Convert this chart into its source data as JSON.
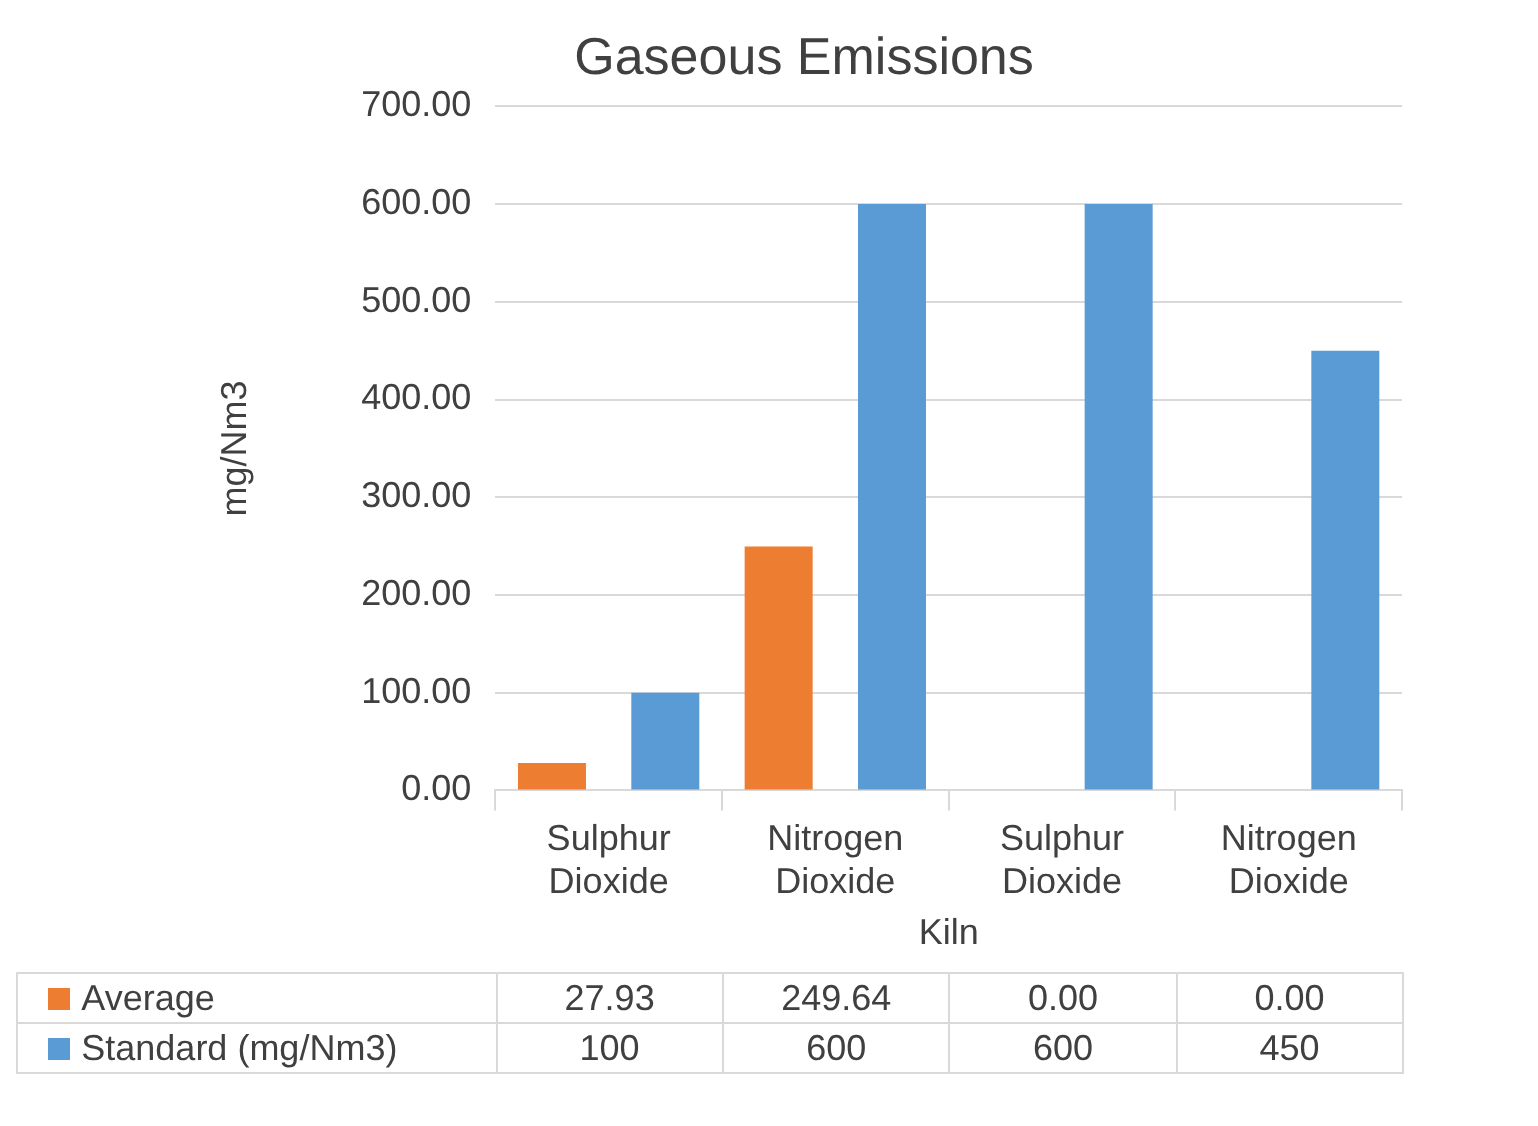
{
  "chart_data": {
    "type": "bar",
    "title": "Gaseous Emissions",
    "ylabel": "mg/Nm3",
    "xlabel": "Kiln",
    "categories": [
      "Sulphur Dioxide",
      "Nitrogen Dioxide",
      "Sulphur Dioxide",
      "Nitrogen Dioxide"
    ],
    "series": [
      {
        "name": "Average",
        "color": "#ed7d31",
        "values": [
          27.93,
          249.64,
          0.0,
          0.0
        ],
        "value_labels": [
          "27.93",
          "249.64",
          "0.00",
          "0.00"
        ]
      },
      {
        "name": "Standard (mg/Nm3)",
        "color": "#5b9bd5",
        "values": [
          100,
          600,
          600,
          450
        ],
        "value_labels": [
          "100",
          "600",
          "600",
          "450"
        ]
      }
    ],
    "ylim": [
      0,
      700
    ],
    "yticks": [
      {
        "value": 0,
        "label": "0.00"
      },
      {
        "value": 100,
        "label": "100.00"
      },
      {
        "value": 200,
        "label": "200.00"
      },
      {
        "value": 300,
        "label": "300.00"
      },
      {
        "value": 400,
        "label": "400.00"
      },
      {
        "value": 500,
        "label": "500.00"
      },
      {
        "value": 600,
        "label": "600.00"
      },
      {
        "value": 700,
        "label": "700.00"
      }
    ],
    "grid": "y",
    "legend": "bottom"
  }
}
